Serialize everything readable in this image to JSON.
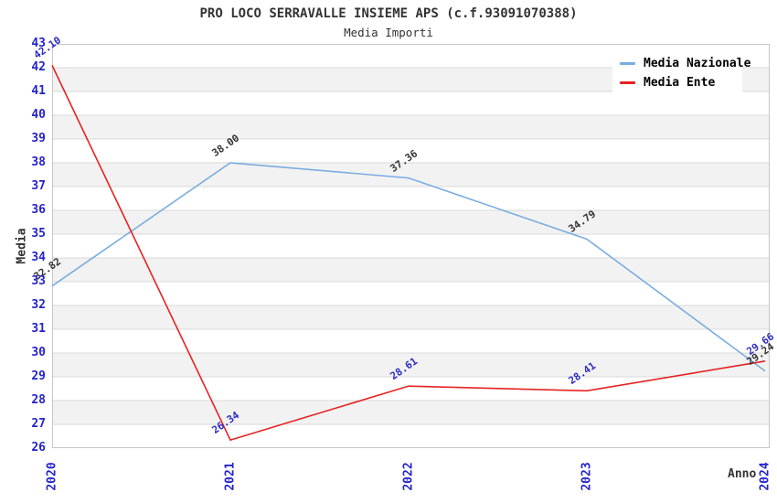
{
  "header": {
    "title": "PRO LOCO SERRAVALLE INSIEME APS (c.f.93091070388)",
    "subtitle": "Media Importi"
  },
  "chart_data": {
    "type": "line",
    "x": [
      "2020",
      "2021",
      "2022",
      "2023",
      "2024"
    ],
    "series": [
      {
        "name": "Media Nazionale",
        "values": [
          32.82,
          38.0,
          37.36,
          34.79,
          29.24
        ],
        "line_color": "#7AADE0",
        "label_color": "#333333"
      },
      {
        "name": "Media Ente",
        "values": [
          42.1,
          26.34,
          28.61,
          28.41,
          29.66
        ],
        "line_color": "#E62222",
        "label_color": "#2B2BC4"
      }
    ],
    "xlabel": "Anno",
    "ylabel": "Media",
    "ylim": [
      26,
      43
    ],
    "ytick_step": 1,
    "grid": "horizontal",
    "legend_position": "top-right",
    "label_format_decimals": 2
  },
  "palette": {
    "tick_text": "#2323CC",
    "axis_text": "#333333",
    "grid_line": "#D9D9D9",
    "band_fill": "#F2F2F2",
    "plot_border": "#C6C6C6",
    "background": "#FFFFFF"
  }
}
